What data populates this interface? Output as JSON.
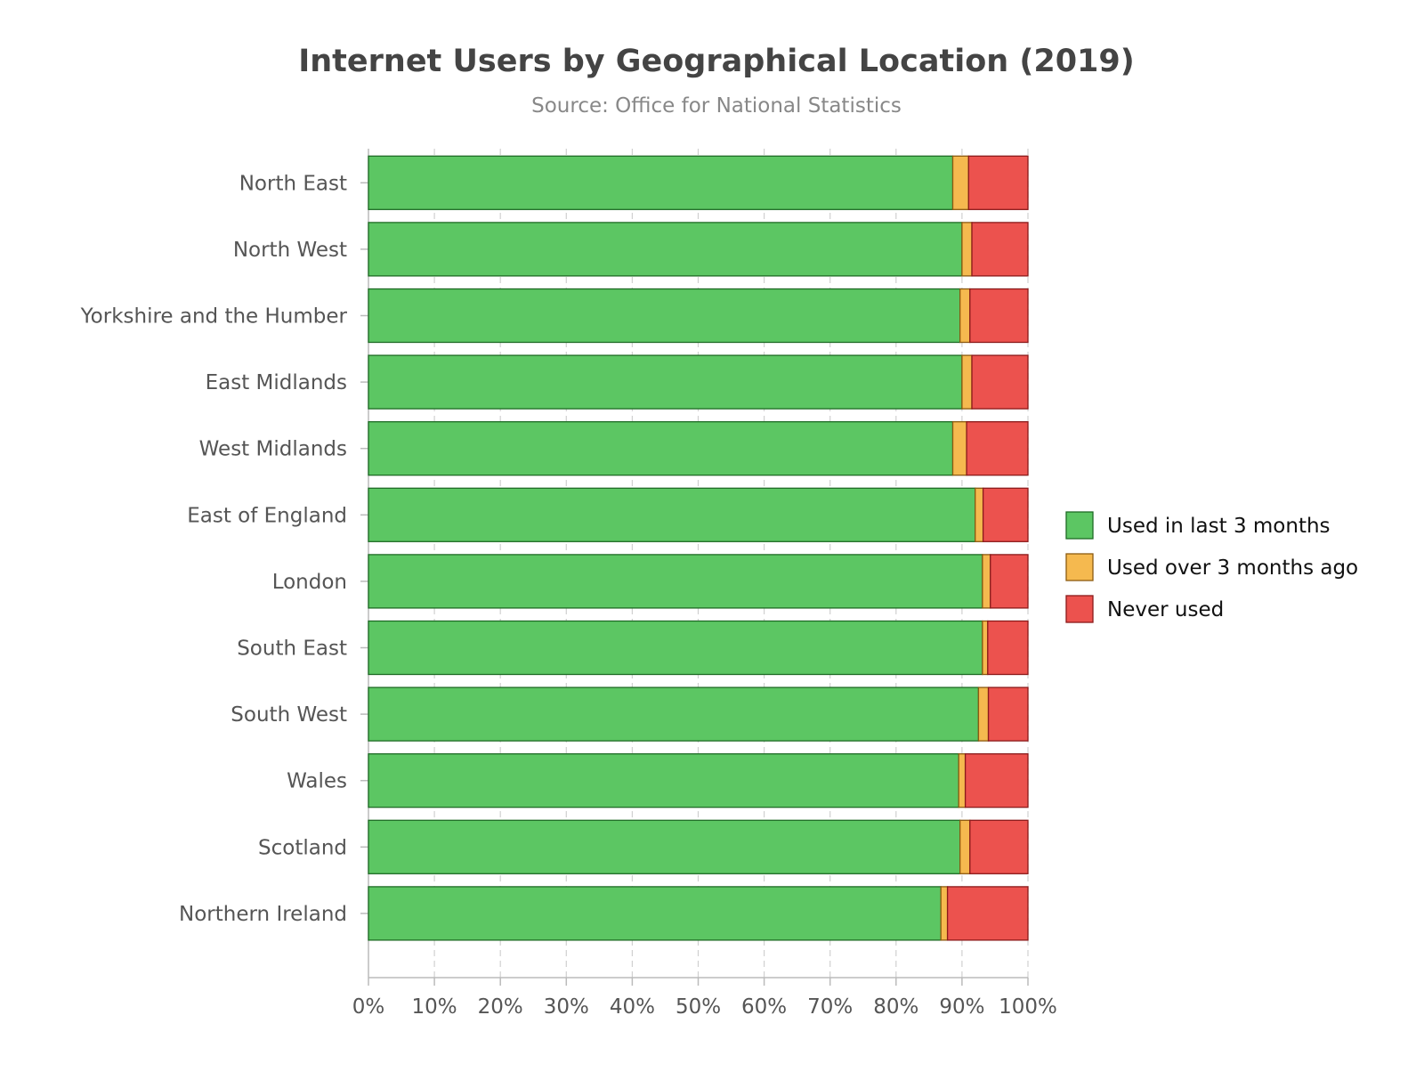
{
  "chart_data": {
    "type": "bar",
    "orientation": "horizontal",
    "stacked": true,
    "title": "Internet Users by Geographical Location (2019)",
    "subtitle": "Source: Office for National Statistics",
    "xlabel": "",
    "ylabel": "",
    "xlim": [
      0,
      100
    ],
    "x_ticks": [
      "0%",
      "10%",
      "20%",
      "30%",
      "40%",
      "50%",
      "60%",
      "70%",
      "80%",
      "90%",
      "100%"
    ],
    "grid": true,
    "legend_position": "right",
    "categories": [
      "North East",
      "North West",
      "Yorkshire and the Humber",
      "East Midlands",
      "West Midlands",
      "East of England",
      "London",
      "South East",
      "South West",
      "Wales",
      "Scotland",
      "Northern Ireland"
    ],
    "series": [
      {
        "name": "Used in last 3 months",
        "color": "#5cc663",
        "stroke": "#1e6b25",
        "values": [
          88.6,
          90.0,
          89.7,
          90.0,
          88.6,
          92.0,
          93.1,
          93.1,
          92.5,
          89.5,
          89.7,
          86.8
        ]
      },
      {
        "name": "Used over 3 months ago",
        "color": "#f5b94f",
        "stroke": "#8c5a10",
        "values": [
          2.4,
          1.5,
          1.5,
          1.5,
          2.1,
          1.2,
          1.2,
          0.8,
          1.5,
          1.0,
          1.5,
          1.0
        ]
      },
      {
        "name": "Never used",
        "color": "#ec524e",
        "stroke": "#8b1a1a",
        "values": [
          9.0,
          8.5,
          8.8,
          8.5,
          9.3,
          6.8,
          5.7,
          6.1,
          6.0,
          9.5,
          8.8,
          12.2
        ]
      }
    ]
  }
}
